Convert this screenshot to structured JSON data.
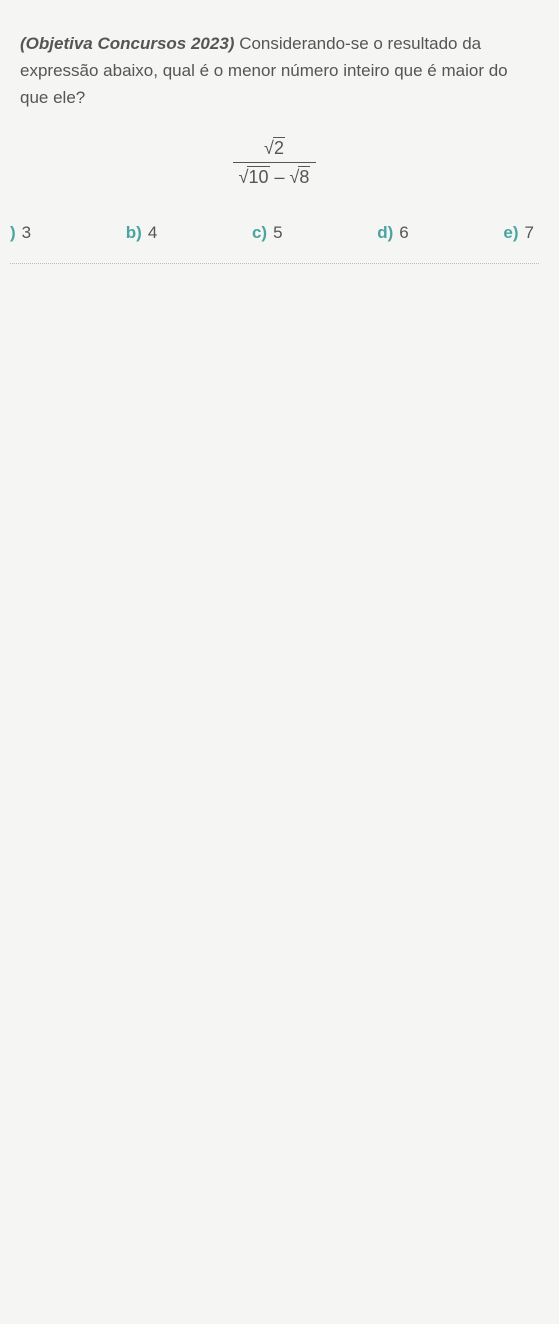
{
  "question": {
    "source_bold": "(Objetiva Concursos 2023)",
    "text_part1": " Considerando-se o resultado da expressão abaixo, qual é o menor número inteiro que é maior do que ele?",
    "expression": {
      "num_radicand": "2",
      "den_left_radicand": "10",
      "den_minus": " – ",
      "den_right_radicand": "8"
    }
  },
  "options": [
    {
      "letter": ")",
      "value": "3"
    },
    {
      "letter": "b)",
      "value": "4"
    },
    {
      "letter": "c)",
      "value": "5"
    },
    {
      "letter": "d)",
      "value": "6"
    },
    {
      "letter": "e)",
      "value": "7"
    }
  ],
  "colors": {
    "option_letter": "#4aa5a0",
    "text": "#555555",
    "background": "#f5f5f3",
    "dotted_line": "#bbbbbb"
  },
  "fonts": {
    "body_size_pt": 13,
    "expression_size_pt": 14
  }
}
